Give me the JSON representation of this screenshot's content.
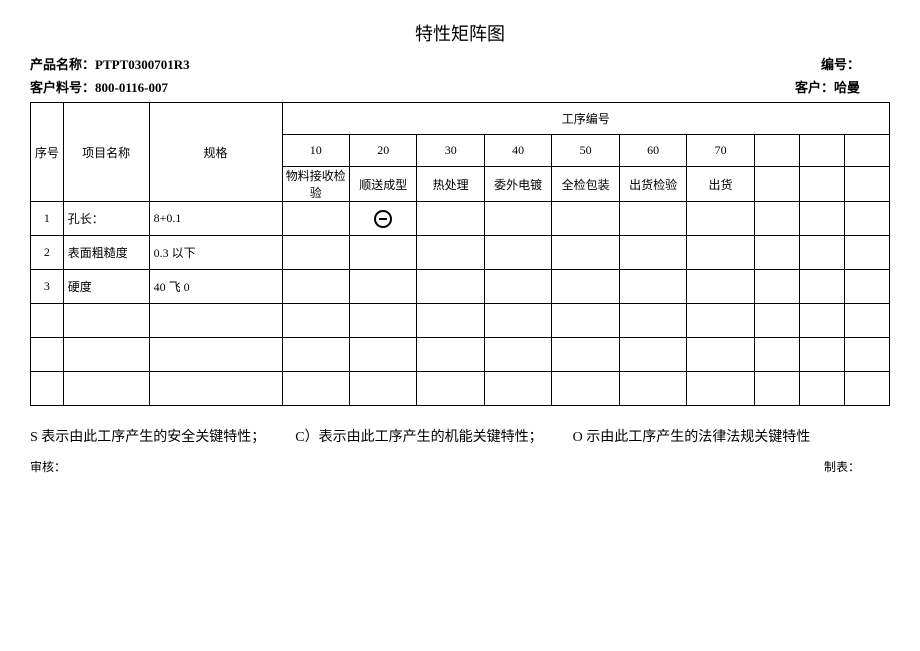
{
  "title": "特性矩阵图",
  "header": {
    "product_name_label": "产品名称：",
    "product_name_value": "PTPT0300701R3",
    "code_label": "编号：",
    "code_value": "",
    "customer_part_label": "客户料号：",
    "customer_part_value": "800-0116-007",
    "customer_label": "客户：",
    "customer_value": "哈曼"
  },
  "table": {
    "col_seq": "序号",
    "col_item": "项目名称",
    "col_spec": "规格",
    "process_header": "工序编号",
    "process_nums": [
      "10",
      "20",
      "30",
      "40",
      "50",
      "60",
      "70"
    ],
    "process_names": [
      "物料接收检验",
      "顺送成型",
      "热处理",
      "委外电镀",
      "全检包装",
      "出货检验",
      "出货"
    ],
    "rows": [
      {
        "seq": "1",
        "item": "孔长：",
        "spec": "8+0.1",
        "marks": [
          "",
          "circle",
          "",
          "",
          "",
          "",
          ""
        ]
      },
      {
        "seq": "2",
        "item": "表面粗糙度",
        "spec": "0.3 以下",
        "marks": [
          "",
          "",
          "",
          "",
          "",
          "",
          ""
        ]
      },
      {
        "seq": "3",
        "item": "硬度",
        "spec": "40 飞 0",
        "marks": [
          "",
          "",
          "",
          "",
          "",
          "",
          ""
        ]
      }
    ],
    "blank_rows": 3
  },
  "legend": {
    "s": "S 表示由此工序产生的安全关键特性；",
    "c": "C）表示由此工序产生的机能关键特性；",
    "o": "O 示由此工序产生的法律法规关键特性"
  },
  "footer": {
    "reviewer": "审核：",
    "preparer": "制表："
  }
}
